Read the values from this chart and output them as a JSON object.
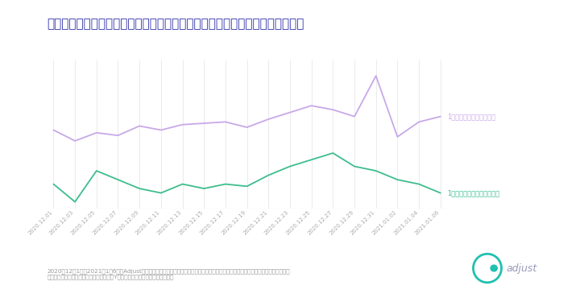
{
  "title": "日本における年末シーズンのソーシャルコミュニケーションアプリの利用状況",
  "title_color": "#3333aa",
  "title_fontsize": 11,
  "dates": [
    "2020.12.01",
    "2020.12.03",
    "2020.12.05",
    "2020.12.07",
    "2020.12.09",
    "2020.12.11",
    "2020.12.13",
    "2020.12.15",
    "2020.12.17",
    "2020.12.19",
    "2020.12.21",
    "2020.12.23",
    "2020.12.25",
    "2020.12.27",
    "2020.12.29",
    "2020.12.31",
    "2021.01.02",
    "2021.01.04",
    "2021.01.06"
  ],
  "sessions": [
    72,
    64,
    70,
    68,
    75,
    72,
    76,
    77,
    78,
    74,
    80,
    85,
    90,
    87,
    82,
    112,
    67,
    78,
    82
  ],
  "installs": [
    42,
    34,
    48,
    44,
    40,
    38,
    42,
    40,
    42,
    41,
    46,
    50,
    53,
    56,
    50,
    48,
    44,
    42,
    38
  ],
  "session_color": "#c8a8e8",
  "install_color": "#3dbd8d",
  "session_label": "1日あたりのセッション数",
  "install_label": "1日あたりのインストール数",
  "bg_color": "#ffffff",
  "grid_color": "#e8e8e8",
  "tick_color": "#aaaaaa",
  "footnote_line1": "2020年12月1日～2021年1月6日にAdjustプラットフォームで計測されたソーシャルコミュニケーションアプリのデータに基づきます。",
  "footnote_line2": "インストール数とセッション数は、異なるYスケールでプロットされています。",
  "adjust_text_color": "#9999bb",
  "adjust_icon_color": "#20c0b0"
}
